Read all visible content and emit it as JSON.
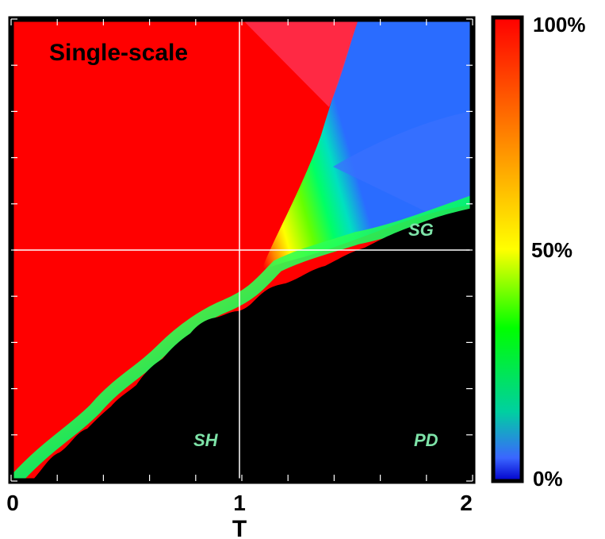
{
  "chart_data": {
    "type": "heatmap",
    "title": "Single-scale",
    "xlabel": "T",
    "ylabel": "",
    "xlim": [
      0,
      2
    ],
    "x_ticks": [
      "0",
      "1",
      "2"
    ],
    "regions": [
      "SH",
      "SG",
      "PD"
    ],
    "colorbar": {
      "ticks": [
        "100%",
        "50%",
        "0%"
      ],
      "stops": [
        "#ff0000",
        "#ff7a00",
        "#ffff00",
        "#00ff00",
        "#00d0a0",
        "#3a66ff",
        "#0000cc"
      ]
    },
    "grid": true
  }
}
